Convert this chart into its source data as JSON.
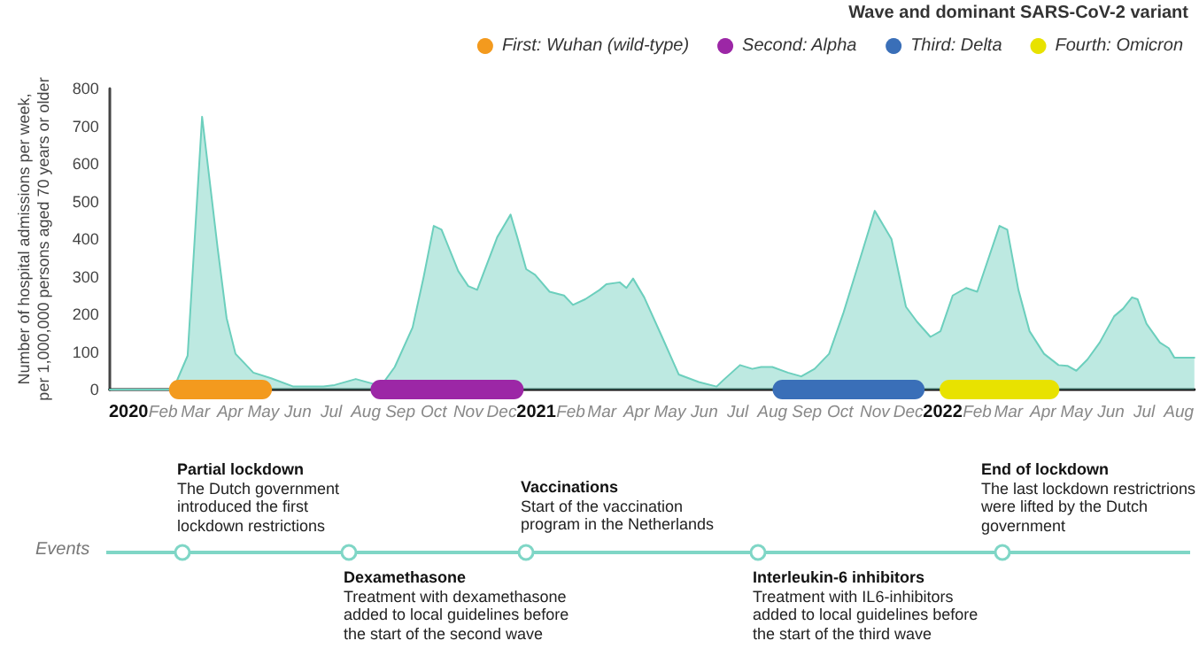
{
  "chart_data": {
    "type": "area",
    "legend_title": "Wave and dominant SARS-CoV-2 variant",
    "ylabel": "Number of hospital admissions per week,\nper 1,000,000 persons aged 70 years or older",
    "x": [
      "2019-12-15",
      "2020-02-10",
      "2020-02-23",
      "2020-03-07",
      "2020-03-21",
      "2020-03-29",
      "2020-04-06",
      "2020-04-22",
      "2020-05-08",
      "2020-05-28",
      "2020-06-24",
      "2020-07-04",
      "2020-07-23",
      "2020-08-08",
      "2020-08-16",
      "2020-08-27",
      "2020-09-12",
      "2020-09-22",
      "2020-10-01",
      "2020-10-08",
      "2020-10-23",
      "2020-11-01",
      "2020-11-09",
      "2020-11-27",
      "2020-12-09",
      "2020-12-15",
      "2020-12-23",
      "2020-12-31",
      "2021-01-13",
      "2021-01-26",
      "2021-02-03",
      "2021-02-14",
      "2021-02-27",
      "2021-03-05",
      "2021-03-17",
      "2021-03-23",
      "2021-03-29",
      "2021-04-08",
      "2021-04-24",
      "2021-05-09",
      "2021-05-27",
      "2021-06-12",
      "2021-06-18",
      "2021-07-03",
      "2021-07-14",
      "2021-07-22",
      "2021-08-01",
      "2021-08-15",
      "2021-08-27",
      "2021-09-08",
      "2021-09-21",
      "2021-10-04",
      "2021-10-17",
      "2021-11-01",
      "2021-11-16",
      "2021-11-29",
      "2021-12-09",
      "2021-12-21",
      "2021-12-30",
      "2022-01-10",
      "2022-01-22",
      "2022-02-01",
      "2022-02-09",
      "2022-02-21",
      "2022-02-28",
      "2022-03-10",
      "2022-03-20",
      "2022-04-02",
      "2022-04-15",
      "2022-04-23",
      "2022-05-01",
      "2022-05-11",
      "2022-05-22",
      "2022-06-04",
      "2022-06-12",
      "2022-06-20",
      "2022-06-25",
      "2022-07-03",
      "2022-07-15",
      "2022-07-23",
      "2022-07-28",
      "2022-08-03",
      "2022-08-15"
    ],
    "series": [
      {
        "color": "#6ccfbd",
        "values": [
          0,
          0,
          90,
          725,
          375,
          190,
          95,
          45,
          30,
          8,
          8,
          12,
          28,
          15,
          15,
          60,
          165,
          300,
          435,
          425,
          315,
          275,
          265,
          405,
          465,
          405,
          320,
          305,
          260,
          250,
          225,
          240,
          265,
          280,
          285,
          270,
          295,
          245,
          140,
          40,
          20,
          8,
          25,
          65,
          55,
          60,
          60,
          45,
          35,
          55,
          95,
          205,
          330,
          475,
          400,
          220,
          180,
          140,
          155,
          250,
          270,
          260,
          330,
          435,
          425,
          265,
          155,
          95,
          65,
          63,
          50,
          80,
          125,
          195,
          215,
          245,
          240,
          175,
          125,
          110,
          85,
          85,
          85
        ]
      },
      {
        "name": "First: Wuhan (wild-type)",
        "type": "line",
        "color": "#f39a1e",
        "x": [
          "2020-02-15",
          "2020-04-30"
        ],
        "values": [
          0,
          0
        ]
      },
      {
        "name": "Second: Alpha",
        "type": "line",
        "color": "#9c27a6",
        "x": [
          "2020-08-14",
          "2020-12-12"
        ],
        "values": [
          0,
          0
        ]
      },
      {
        "name": "Third: Delta",
        "type": "line",
        "color": "#3a6fb8",
        "x": [
          "2021-08-10",
          "2021-12-07"
        ],
        "values": [
          0,
          0
        ]
      },
      {
        "name": "Fourth: Omicron",
        "type": "line",
        "color": "#e8e200",
        "x": [
          "2022-01-07",
          "2022-04-07"
        ],
        "values": [
          0,
          0
        ]
      }
    ],
    "xlim": [
      "2019-12-15",
      "2022-08-15"
    ],
    "xticks": [
      {
        "value": "2020-01",
        "label": "2020"
      },
      {
        "value": "2020-02",
        "label": "Feb"
      },
      {
        "value": "2020-03",
        "label": "Mar"
      },
      {
        "value": "2020-04",
        "label": "Apr"
      },
      {
        "value": "2020-05",
        "label": "May"
      },
      {
        "value": "2020-06",
        "label": "Jun"
      },
      {
        "value": "2020-07",
        "label": "Jul"
      },
      {
        "value": "2020-08",
        "label": "Aug"
      },
      {
        "value": "2020-09",
        "label": "Sep"
      },
      {
        "value": "2020-10",
        "label": "Oct"
      },
      {
        "value": "2020-11",
        "label": "Nov"
      },
      {
        "value": "2020-12",
        "label": "Dec"
      },
      {
        "value": "2021-01",
        "label": "2021"
      },
      {
        "value": "2021-02",
        "label": "Feb"
      },
      {
        "value": "2021-03",
        "label": "Mar"
      },
      {
        "value": "2021-04",
        "label": "Apr"
      },
      {
        "value": "2021-05",
        "label": "May"
      },
      {
        "value": "2021-06",
        "label": "Jun"
      },
      {
        "value": "2021-07",
        "label": "Jul"
      },
      {
        "value": "2021-08",
        "label": "Aug"
      },
      {
        "value": "2021-09",
        "label": "Sep"
      },
      {
        "value": "2021-10",
        "label": "Oct"
      },
      {
        "value": "2021-11",
        "label": "Nov"
      },
      {
        "value": "2021-12",
        "label": "Dec"
      },
      {
        "value": "2022-01",
        "label": "2022"
      },
      {
        "value": "2022-02",
        "label": "Feb"
      },
      {
        "value": "2022-03",
        "label": "Mar"
      },
      {
        "value": "2022-04",
        "label": "Apr"
      },
      {
        "value": "2022-05",
        "label": "May"
      },
      {
        "value": "2022-06",
        "label": "Jun"
      },
      {
        "value": "2022-07",
        "label": "Jul"
      },
      {
        "value": "2022-08",
        "label": "Aug"
      }
    ],
    "ylim": [
      0,
      800
    ],
    "yticks": [
      0,
      100,
      200,
      300,
      400,
      500,
      600,
      700,
      800
    ],
    "grid": false,
    "marker": "none",
    "legend": "top right",
    "annotations": [
      "Events",
      "Partial lockdown\nThe Dutch government\nintroduced the first\nlockdown restrictions",
      "Dexamethasone\nTreatment with dexamethasone\nadded to local guidelines before\nthe start of the second wave",
      "Vaccinations\nStart of the vaccination\nprogram in the Netherlands",
      "Interleukin-6 inhibitors\nTreatment with IL6-inhibitors\nadded to local guidelines before\nthe start of the third wave",
      "End of lockdown\nThe last lockdown restrictrions\nwere lifted by the Dutch\ngovernment"
    ]
  }
}
